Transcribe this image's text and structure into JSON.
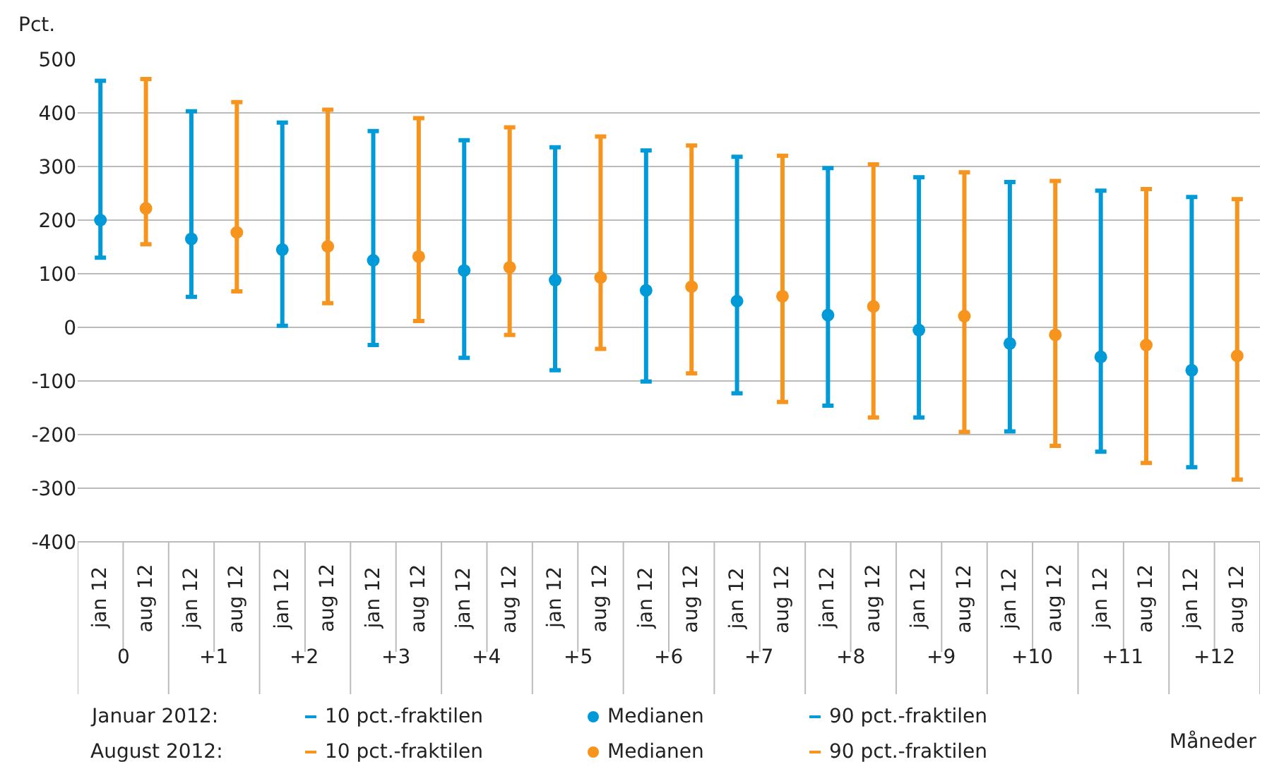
{
  "chart_data": {
    "type": "scatter",
    "ylabel": "Pct.",
    "xlabel": "Måneder",
    "categories": [
      "0",
      "+1",
      "+2",
      "+3",
      "+4",
      "+5",
      "+6",
      "+7",
      "+8",
      "+9",
      "+10",
      "+11",
      "+12"
    ],
    "series": [
      {
        "name": "jan 12",
        "color": "#009ad8",
        "values": [
          200,
          165,
          145,
          125,
          106,
          88,
          69,
          49,
          23,
          -5,
          -30,
          -55,
          -80
        ],
        "errors": [
          [
            130,
            460
          ],
          [
            57,
            403
          ],
          [
            3,
            382
          ],
          [
            -33,
            366
          ],
          [
            -57,
            349
          ],
          [
            -80,
            336
          ],
          [
            -101,
            330
          ],
          [
            -123,
            318
          ],
          [
            -146,
            297
          ],
          [
            -168,
            280
          ],
          [
            -194,
            271
          ],
          [
            -232,
            255
          ],
          [
            -261,
            243
          ]
        ]
      },
      {
        "name": "aug 12",
        "color": "#f7941d",
        "values": [
          222,
          177,
          151,
          132,
          112,
          93,
          76,
          58,
          39,
          21,
          -14,
          -33,
          -53
        ],
        "errors": [
          [
            155,
            463
          ],
          [
            67,
            420
          ],
          [
            45,
            406
          ],
          [
            12,
            390
          ],
          [
            -14,
            373
          ],
          [
            -40,
            356
          ],
          [
            -86,
            339
          ],
          [
            -139,
            320
          ],
          [
            -168,
            304
          ],
          [
            -195,
            289
          ],
          [
            -221,
            273
          ],
          [
            -253,
            258
          ],
          [
            -284,
            239
          ]
        ]
      }
    ],
    "ylim": [
      -400,
      500
    ],
    "yticks": [
      -400,
      -300,
      -200,
      -100,
      0,
      100,
      200,
      300,
      400,
      500
    ],
    "grid": "y",
    "marker": "circle",
    "annotations": [
      "Januar 2012:",
      "10 pct.-fraktilen",
      "Medianen",
      "90 pct.-fraktilen",
      "August 2012:",
      "10 pct.-fraktilen",
      "Medianen",
      "90 pct.-fraktilen"
    ]
  }
}
